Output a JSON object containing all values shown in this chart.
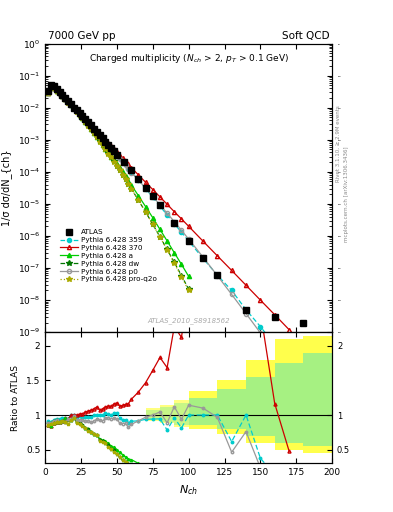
{
  "title_top_left": "7000 GeV pp",
  "title_top_right": "Soft QCD",
  "main_title": "Charged multiplicity (N_{ch} > 2, p_{T} > 0.1 GeV)",
  "xlabel": "N_{ch}",
  "ylabel_main": "1/σ dσ/dN_{ch}",
  "ylabel_ratio": "Ratio to ATLAS",
  "watermark": "ATLAS_2010_S8918562",
  "right_label": "mcplots.cern.ch [arXiv:1306.3436]",
  "right_label2": "Rivet 3.1.10, ≥ 2.9M events",
  "xlim": [
    0,
    200
  ],
  "ylim_main_log": [
    -9,
    0
  ],
  "ylim_ratio": [
    0.3,
    2.2
  ],
  "colors": {
    "atlas": "#000000",
    "p359": "#00cccc",
    "p370": "#cc0000",
    "pa": "#00cc00",
    "pdw": "#007700",
    "pp0": "#999999",
    "pproq2o": "#aaaa00"
  },
  "atlas_x": [
    2,
    4,
    6,
    8,
    10,
    12,
    14,
    16,
    18,
    20,
    22,
    24,
    26,
    28,
    30,
    32,
    34,
    36,
    38,
    40,
    42,
    44,
    46,
    48,
    50,
    55,
    60,
    65,
    70,
    75,
    80,
    90,
    100,
    110,
    120,
    140,
    160,
    180
  ],
  "atlas_y": [
    0.033,
    0.052,
    0.046,
    0.038,
    0.031,
    0.025,
    0.02,
    0.016,
    0.013,
    0.01,
    0.0085,
    0.0068,
    0.0055,
    0.0044,
    0.0035,
    0.0028,
    0.0022,
    0.0017,
    0.0014,
    0.0011,
    0.00085,
    0.00068,
    0.00055,
    0.00043,
    0.00034,
    0.0002,
    0.00011,
    6e-05,
    3.2e-05,
    1.7e-05,
    9e-06,
    2.5e-06,
    7e-07,
    2e-07,
    6e-08,
    5e-09,
    3e-09,
    2e-09
  ],
  "p359_x": [
    2,
    4,
    6,
    8,
    10,
    12,
    14,
    16,
    18,
    20,
    22,
    24,
    26,
    28,
    30,
    32,
    34,
    36,
    38,
    40,
    42,
    44,
    46,
    48,
    50,
    52,
    54,
    56,
    58,
    60,
    65,
    70,
    75,
    80,
    85,
    90,
    95,
    100,
    110,
    120,
    130,
    140,
    150,
    160
  ],
  "p359_y": [
    0.03,
    0.047,
    0.043,
    0.036,
    0.029,
    0.024,
    0.019,
    0.015,
    0.013,
    0.01,
    0.0083,
    0.0067,
    0.0053,
    0.0043,
    0.0034,
    0.0027,
    0.0022,
    0.0017,
    0.0014,
    0.0011,
    0.00087,
    0.00069,
    0.00055,
    0.00044,
    0.00035,
    0.00027,
    0.00021,
    0.00017,
    0.00013,
    0.0001,
    5.5e-05,
    3e-05,
    1.6e-05,
    8.5e-06,
    4.5e-06,
    2.4e-06,
    1.3e-06,
    7e-07,
    2e-07,
    6e-08,
    2e-08,
    5e-09,
    1.5e-09,
    4e-10
  ],
  "p370_x": [
    2,
    4,
    6,
    8,
    10,
    12,
    14,
    16,
    18,
    20,
    22,
    24,
    26,
    28,
    30,
    32,
    34,
    36,
    38,
    40,
    42,
    44,
    46,
    48,
    50,
    52,
    54,
    56,
    58,
    60,
    65,
    70,
    75,
    80,
    85,
    90,
    95,
    100,
    110,
    120,
    130,
    140,
    150,
    160,
    170
  ],
  "p370_y": [
    0.028,
    0.044,
    0.041,
    0.034,
    0.028,
    0.023,
    0.019,
    0.015,
    0.013,
    0.01,
    0.0085,
    0.0069,
    0.0056,
    0.0046,
    0.0037,
    0.003,
    0.0024,
    0.0019,
    0.0015,
    0.0012,
    0.00095,
    0.00077,
    0.00062,
    0.0005,
    0.0004,
    0.00032,
    0.00026,
    0.00021,
    0.00017,
    0.000135,
    8e-05,
    4.7e-05,
    2.8e-05,
    1.65e-05,
    9.7e-06,
    5.7e-06,
    3.4e-06,
    2e-06,
    6.9e-07,
    2.4e-07,
    8.4e-08,
    2.9e-08,
    1e-08,
    3.5e-09,
    1.2e-09
  ],
  "pa_x": [
    2,
    4,
    6,
    8,
    10,
    12,
    14,
    16,
    18,
    20,
    22,
    24,
    26,
    28,
    30,
    32,
    34,
    36,
    38,
    40,
    42,
    44,
    46,
    48,
    50,
    52,
    54,
    56,
    58,
    60,
    65,
    70,
    75,
    80,
    85,
    90,
    95,
    100
  ],
  "pa_y": [
    0.028,
    0.044,
    0.041,
    0.034,
    0.028,
    0.023,
    0.019,
    0.015,
    0.012,
    0.0097,
    0.0077,
    0.006,
    0.0047,
    0.0036,
    0.0028,
    0.0021,
    0.0016,
    0.0012,
    0.00092,
    0.0007,
    0.00053,
    0.0004,
    0.0003,
    0.00023,
    0.00017,
    0.00013,
    9.7e-05,
    7.2e-05,
    5.3e-05,
    3.9e-05,
    1.8e-05,
    8.2e-06,
    3.7e-06,
    1.6e-06,
    7e-07,
    3e-07,
    1.3e-07,
    5.5e-08
  ],
  "pdw_x": [
    2,
    4,
    6,
    8,
    10,
    12,
    14,
    16,
    18,
    20,
    22,
    24,
    26,
    28,
    30,
    32,
    34,
    36,
    38,
    40,
    42,
    44,
    46,
    48,
    50,
    52,
    54,
    56,
    58,
    60,
    65,
    70,
    75,
    80,
    85,
    90,
    95,
    100
  ],
  "pdw_y": [
    0.029,
    0.046,
    0.042,
    0.035,
    0.028,
    0.023,
    0.018,
    0.015,
    0.012,
    0.0096,
    0.0076,
    0.006,
    0.0047,
    0.0036,
    0.0028,
    0.0021,
    0.0016,
    0.0012,
    0.0009,
    0.00068,
    0.00051,
    0.00038,
    0.00028,
    0.00021,
    0.00015,
    0.00011,
    8e-05,
    5.8e-05,
    4.2e-05,
    3e-05,
    1.3e-05,
    5.6e-06,
    2.3e-06,
    9.4e-07,
    3.8e-07,
    1.5e-07,
    5.8e-08,
    2.2e-08
  ],
  "pp0_x": [
    2,
    4,
    6,
    8,
    10,
    12,
    14,
    16,
    18,
    20,
    22,
    24,
    26,
    28,
    30,
    32,
    34,
    36,
    38,
    40,
    42,
    44,
    46,
    48,
    50,
    52,
    54,
    56,
    58,
    60,
    65,
    70,
    75,
    80,
    85,
    90,
    95,
    100,
    110,
    120,
    130,
    140,
    150,
    160
  ],
  "pp0_y": [
    0.029,
    0.046,
    0.042,
    0.035,
    0.028,
    0.023,
    0.018,
    0.015,
    0.012,
    0.0098,
    0.0079,
    0.0063,
    0.0051,
    0.004,
    0.0032,
    0.0025,
    0.002,
    0.0016,
    0.0013,
    0.001,
    0.00081,
    0.00065,
    0.00052,
    0.00041,
    0.00032,
    0.00025,
    0.0002,
    0.00016,
    0.00012,
    9.5e-05,
    5.5e-05,
    3.1e-05,
    1.7e-05,
    9.4e-06,
    5.1e-06,
    2.8e-06,
    1.5e-06,
    8e-07,
    2.2e-07,
    5.8e-08,
    1.5e-08,
    3.8e-09,
    9.5e-10,
    2.3e-10
  ],
  "pproq2o_x": [
    2,
    4,
    6,
    8,
    10,
    12,
    14,
    16,
    18,
    20,
    22,
    24,
    26,
    28,
    30,
    32,
    34,
    36,
    38,
    40,
    42,
    44,
    46,
    48,
    50,
    52,
    54,
    56,
    58,
    60,
    65,
    70,
    75,
    80,
    85,
    90,
    95,
    100
  ],
  "pproq2o_y": [
    0.028,
    0.045,
    0.041,
    0.034,
    0.028,
    0.023,
    0.018,
    0.014,
    0.012,
    0.0095,
    0.0075,
    0.0059,
    0.0046,
    0.0036,
    0.0027,
    0.0021,
    0.0016,
    0.0012,
    0.00088,
    0.00067,
    0.0005,
    0.00037,
    0.00028,
    0.0002,
    0.00015,
    0.00011,
    8e-05,
    5.8e-05,
    4.2e-05,
    3e-05,
    1.3e-05,
    5.5e-06,
    2.3e-06,
    9.3e-07,
    3.7e-07,
    1.4e-07,
    5.4e-08,
    2e-08
  ],
  "legend_entries": [
    {
      "label": "ATLAS",
      "color": "#000000",
      "marker": "s",
      "ls": "none"
    },
    {
      "label": "Pythia 6.428 359",
      "color": "#00cccc",
      "marker": "o",
      "ls": "--"
    },
    {
      "label": "Pythia 6.428 370",
      "color": "#cc0000",
      "marker": "^",
      "ls": "-",
      "mfc": "none"
    },
    {
      "label": "Pythia 6.428 a",
      "color": "#00cc00",
      "marker": "^",
      "ls": "-"
    },
    {
      "label": "Pythia 6.428 dw",
      "color": "#007700",
      "marker": "*",
      "ls": "--"
    },
    {
      "label": "Pythia 6.428 p0",
      "color": "#999999",
      "marker": "o",
      "ls": "-",
      "mfc": "none"
    },
    {
      "label": "Pythia 6.428 pro-q2o",
      "color": "#aaaa00",
      "marker": "*",
      "ls": ":"
    }
  ]
}
